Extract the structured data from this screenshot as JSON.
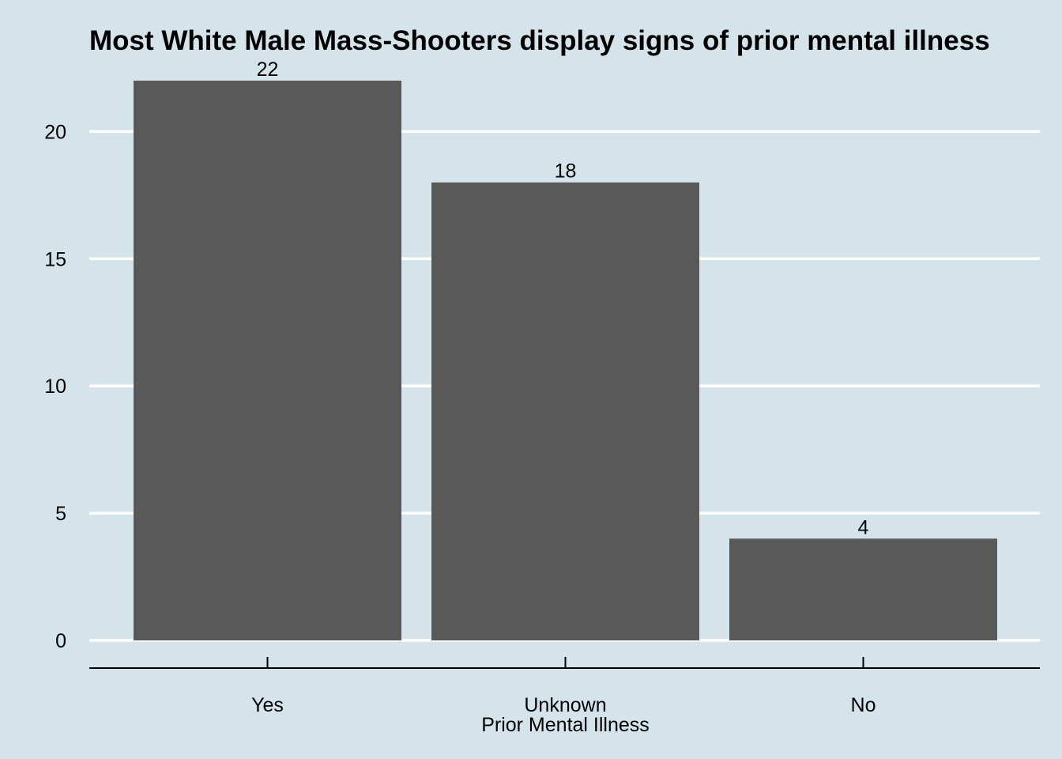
{
  "chart_data": {
    "type": "bar",
    "title": "Most White Male Mass-Shooters display signs of prior mental illness",
    "xlabel": "Prior Mental Illness",
    "ylabel": "",
    "categories": [
      "Yes",
      "Unknown",
      "No"
    ],
    "values": [
      22,
      18,
      4
    ],
    "data_labels": [
      "22",
      "18",
      "4"
    ],
    "ylim": [
      0,
      22
    ],
    "yticks": [
      0,
      5,
      10,
      15,
      20
    ],
    "ytick_labels": [
      "0",
      "5",
      "10",
      "15",
      "20"
    ],
    "grid": "horizontal-major",
    "legend": "none",
    "colors": {
      "background": "#d5e4eb",
      "bar": "#595959",
      "gridline": "#ffffff",
      "text": "#000000"
    }
  }
}
